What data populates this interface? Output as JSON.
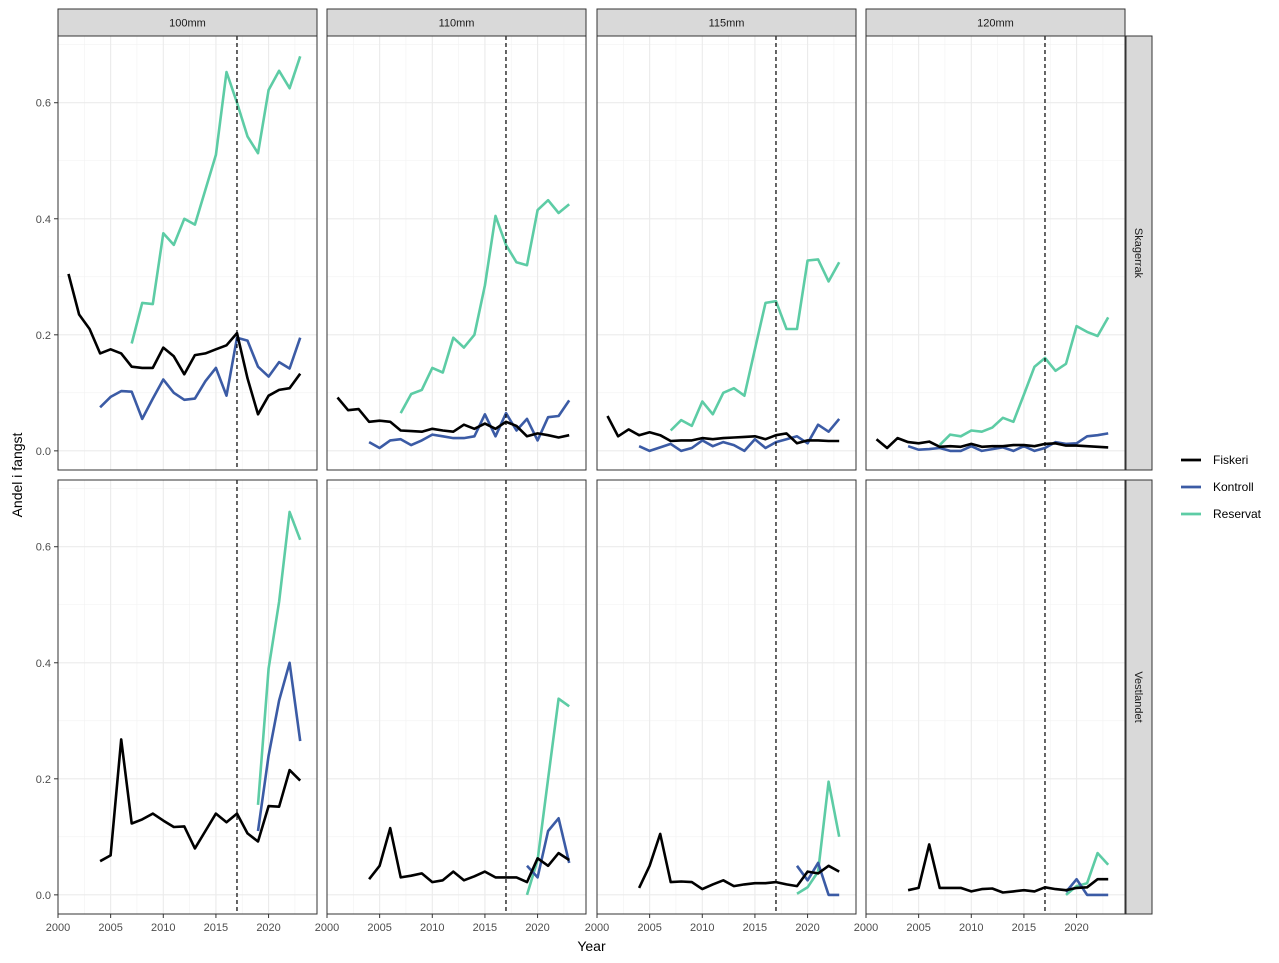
{
  "chart_data": {
    "type": "line",
    "title": "",
    "xlabel": "Year",
    "ylabel": "Andel i fangst",
    "xlim": [
      2000,
      2024.6
    ],
    "ylim": [
      -0.033,
      0.715
    ],
    "x_ticks": [
      2000,
      2005,
      2010,
      2015,
      2020
    ],
    "y_ticks": [
      0.0,
      0.2,
      0.4,
      0.6
    ],
    "y_tick_labels": [
      "0.0",
      "0.2",
      "0.4",
      "0.6"
    ],
    "vline_x": 2017,
    "grid": true,
    "legend_position": "right",
    "columns": [
      "100mm",
      "110mm",
      "115mm",
      "120mm"
    ],
    "rows": [
      "Skagerrak",
      "Vestlandet"
    ],
    "legend": [
      {
        "key": "Fiskeri",
        "label": "Fiskeri",
        "color": "#000000"
      },
      {
        "key": "Kontroll",
        "label": "Kontroll",
        "color": "#3b5ba5"
      },
      {
        "key": "Reservat",
        "label": "Reservat",
        "color": "#5dcca5"
      }
    ],
    "panels": [
      {
        "row": "Skagerrak",
        "col": "100mm",
        "series": [
          {
            "name": "Fiskeri",
            "x": [
              2001,
              2002,
              2003,
              2004,
              2005,
              2006,
              2007,
              2008,
              2009,
              2010,
              2011,
              2012,
              2013,
              2014,
              2015,
              2016,
              2017,
              2018,
              2019,
              2020,
              2021,
              2022,
              2023
            ],
            "y": [
              0.305,
              0.235,
              0.21,
              0.168,
              0.175,
              0.168,
              0.145,
              0.143,
              0.143,
              0.178,
              0.163,
              0.132,
              0.165,
              0.168,
              0.175,
              0.182,
              0.203,
              0.125,
              0.063,
              0.095,
              0.105,
              0.108,
              0.133
            ]
          },
          {
            "name": "Kontroll",
            "x": [
              2004,
              2005,
              2006,
              2007,
              2008,
              2009,
              2010,
              2011,
              2012,
              2013,
              2014,
              2015,
              2016,
              2017,
              2018,
              2019,
              2020,
              2021,
              2022,
              2023
            ],
            "y": [
              0.075,
              0.093,
              0.103,
              0.102,
              0.055,
              0.09,
              0.123,
              0.1,
              0.088,
              0.09,
              0.12,
              0.143,
              0.095,
              0.195,
              0.19,
              0.145,
              0.128,
              0.153,
              0.142,
              0.195
            ]
          },
          {
            "name": "Reservat",
            "x": [
              2007,
              2008,
              2009,
              2010,
              2011,
              2012,
              2013,
              2014,
              2015,
              2016,
              2017,
              2018,
              2019,
              2020,
              2021,
              2022,
              2023
            ],
            "y": [
              0.185,
              0.255,
              0.253,
              0.375,
              0.355,
              0.4,
              0.39,
              0.45,
              0.51,
              0.653,
              0.6,
              0.542,
              0.513,
              0.622,
              0.655,
              0.625,
              0.68
            ]
          }
        ]
      },
      {
        "row": "Skagerrak",
        "col": "110mm",
        "series": [
          {
            "name": "Fiskeri",
            "x": [
              2001,
              2002,
              2003,
              2004,
              2005,
              2006,
              2007,
              2008,
              2009,
              2010,
              2011,
              2012,
              2013,
              2014,
              2015,
              2016,
              2017,
              2018,
              2019,
              2020,
              2021,
              2022,
              2023
            ],
            "y": [
              0.092,
              0.07,
              0.072,
              0.05,
              0.052,
              0.05,
              0.035,
              0.034,
              0.033,
              0.038,
              0.035,
              0.033,
              0.045,
              0.038,
              0.047,
              0.038,
              0.05,
              0.043,
              0.025,
              0.03,
              0.027,
              0.023,
              0.027
            ]
          },
          {
            "name": "Kontroll",
            "x": [
              2004,
              2005,
              2006,
              2007,
              2008,
              2009,
              2010,
              2011,
              2012,
              2013,
              2014,
              2015,
              2016,
              2017,
              2018,
              2019,
              2020,
              2021,
              2022,
              2023
            ],
            "y": [
              0.015,
              0.005,
              0.018,
              0.02,
              0.01,
              0.018,
              0.028,
              0.025,
              0.022,
              0.022,
              0.025,
              0.063,
              0.025,
              0.065,
              0.035,
              0.055,
              0.018,
              0.058,
              0.06,
              0.087
            ]
          },
          {
            "name": "Reservat",
            "x": [
              2007,
              2008,
              2009,
              2010,
              2011,
              2012,
              2013,
              2014,
              2015,
              2016,
              2017,
              2018,
              2019,
              2020,
              2021,
              2022,
              2023
            ],
            "y": [
              0.065,
              0.098,
              0.105,
              0.143,
              0.135,
              0.195,
              0.178,
              0.2,
              0.285,
              0.405,
              0.355,
              0.325,
              0.32,
              0.415,
              0.432,
              0.41,
              0.425
            ]
          }
        ]
      },
      {
        "row": "Skagerrak",
        "col": "115mm",
        "series": [
          {
            "name": "Fiskeri",
            "x": [
              2001,
              2002,
              2003,
              2004,
              2005,
              2006,
              2007,
              2008,
              2009,
              2010,
              2011,
              2012,
              2013,
              2014,
              2015,
              2016,
              2017,
              2018,
              2019,
              2020,
              2021,
              2022,
              2023
            ],
            "y": [
              0.06,
              0.025,
              0.037,
              0.027,
              0.032,
              0.027,
              0.017,
              0.018,
              0.018,
              0.022,
              0.02,
              0.022,
              0.023,
              0.024,
              0.025,
              0.02,
              0.027,
              0.03,
              0.013,
              0.018,
              0.018,
              0.017,
              0.017
            ]
          },
          {
            "name": "Kontroll",
            "x": [
              2004,
              2005,
              2006,
              2007,
              2008,
              2009,
              2010,
              2011,
              2012,
              2013,
              2014,
              2015,
              2016,
              2017,
              2018,
              2019,
              2020,
              2021,
              2022,
              2023
            ],
            "y": [
              0.008,
              0.0,
              0.006,
              0.012,
              0.0,
              0.005,
              0.018,
              0.008,
              0.015,
              0.01,
              0.0,
              0.02,
              0.005,
              0.015,
              0.02,
              0.025,
              0.013,
              0.045,
              0.033,
              0.055
            ]
          },
          {
            "name": "Reservat",
            "x": [
              2007,
              2008,
              2009,
              2010,
              2011,
              2012,
              2013,
              2014,
              2015,
              2016,
              2017,
              2018,
              2019,
              2020,
              2021,
              2022,
              2023
            ],
            "y": [
              0.035,
              0.053,
              0.043,
              0.085,
              0.063,
              0.1,
              0.108,
              0.095,
              0.175,
              0.255,
              0.258,
              0.21,
              0.21,
              0.328,
              0.33,
              0.292,
              0.325
            ]
          }
        ]
      },
      {
        "row": "Skagerrak",
        "col": "120mm",
        "series": [
          {
            "name": "Fiskeri",
            "x": [
              2001,
              2002,
              2003,
              2004,
              2005,
              2006,
              2007,
              2008,
              2009,
              2010,
              2011,
              2012,
              2013,
              2014,
              2015,
              2016,
              2017,
              2018,
              2019,
              2020,
              2021,
              2022,
              2023
            ],
            "y": [
              0.02,
              0.005,
              0.022,
              0.015,
              0.013,
              0.016,
              0.007,
              0.008,
              0.007,
              0.012,
              0.007,
              0.008,
              0.008,
              0.01,
              0.01,
              0.008,
              0.012,
              0.013,
              0.009,
              0.009,
              0.008,
              0.007,
              0.006
            ]
          },
          {
            "name": "Kontroll",
            "x": [
              2004,
              2005,
              2006,
              2007,
              2008,
              2009,
              2010,
              2011,
              2012,
              2013,
              2014,
              2015,
              2016,
              2017,
              2018,
              2019,
              2020,
              2021,
              2022,
              2023
            ],
            "y": [
              0.008,
              0.002,
              0.003,
              0.005,
              0.0,
              0.0,
              0.008,
              0.0,
              0.003,
              0.006,
              0.0,
              0.008,
              0.0,
              0.005,
              0.015,
              0.012,
              0.013,
              0.025,
              0.027,
              0.03
            ]
          },
          {
            "name": "Reservat",
            "x": [
              2007,
              2008,
              2009,
              2010,
              2011,
              2012,
              2013,
              2014,
              2015,
              2016,
              2017,
              2018,
              2019,
              2020,
              2021,
              2022,
              2023
            ],
            "y": [
              0.01,
              0.028,
              0.025,
              0.035,
              0.033,
              0.04,
              0.057,
              0.05,
              0.097,
              0.145,
              0.16,
              0.138,
              0.15,
              0.215,
              0.205,
              0.198,
              0.23
            ]
          }
        ]
      },
      {
        "row": "Vestlandet",
        "col": "100mm",
        "series": [
          {
            "name": "Fiskeri",
            "x": [
              2004,
              2005,
              2006,
              2007,
              2008,
              2009,
              2010,
              2011,
              2012,
              2013,
              2014,
              2015,
              2016,
              2017,
              2018,
              2019,
              2020,
              2021,
              2022,
              2023
            ],
            "y": [
              0.058,
              0.068,
              0.268,
              0.123,
              0.13,
              0.14,
              0.128,
              0.117,
              0.118,
              0.08,
              0.11,
              0.14,
              0.125,
              0.14,
              0.106,
              0.092,
              0.153,
              0.152,
              0.215,
              0.197
            ]
          },
          {
            "name": "Kontroll",
            "x": [
              2019,
              2020,
              2021,
              2022,
              2023
            ],
            "y": [
              0.11,
              0.24,
              0.335,
              0.4,
              0.265
            ]
          },
          {
            "name": "Reservat",
            "x": [
              2019,
              2020,
              2021,
              2022,
              2023
            ],
            "y": [
              0.155,
              0.39,
              0.505,
              0.66,
              0.612
            ]
          }
        ]
      },
      {
        "row": "Vestlandet",
        "col": "110mm",
        "series": [
          {
            "name": "Fiskeri",
            "x": [
              2004,
              2005,
              2006,
              2007,
              2008,
              2009,
              2010,
              2011,
              2012,
              2013,
              2014,
              2015,
              2016,
              2017,
              2018,
              2019,
              2020,
              2021,
              2022,
              2023
            ],
            "y": [
              0.027,
              0.05,
              0.115,
              0.03,
              0.033,
              0.037,
              0.022,
              0.025,
              0.04,
              0.025,
              0.032,
              0.04,
              0.03,
              0.03,
              0.03,
              0.022,
              0.063,
              0.05,
              0.072,
              0.06
            ]
          },
          {
            "name": "Kontroll",
            "x": [
              2019,
              2020,
              2021,
              2022,
              2023
            ],
            "y": [
              0.05,
              0.03,
              0.11,
              0.132,
              0.055
            ]
          },
          {
            "name": "Reservat",
            "x": [
              2019,
              2020,
              2021,
              2022,
              2023
            ],
            "y": [
              0.0,
              0.06,
              0.2,
              0.338,
              0.325
            ]
          }
        ]
      },
      {
        "row": "Vestlandet",
        "col": "115mm",
        "series": [
          {
            "name": "Fiskeri",
            "x": [
              2004,
              2005,
              2006,
              2007,
              2008,
              2009,
              2010,
              2011,
              2012,
              2013,
              2014,
              2015,
              2016,
              2017,
              2018,
              2019,
              2020,
              2021,
              2022,
              2023
            ],
            "y": [
              0.012,
              0.05,
              0.105,
              0.022,
              0.023,
              0.022,
              0.01,
              0.018,
              0.025,
              0.015,
              0.018,
              0.02,
              0.02,
              0.022,
              0.018,
              0.015,
              0.04,
              0.037,
              0.05,
              0.04
            ]
          },
          {
            "name": "Kontroll",
            "x": [
              2019,
              2020,
              2021,
              2022,
              2023
            ],
            "y": [
              0.05,
              0.025,
              0.055,
              0.0,
              0.0
            ]
          },
          {
            "name": "Reservat",
            "x": [
              2019,
              2020,
              2021,
              2022,
              2023
            ],
            "y": [
              0.002,
              0.013,
              0.04,
              0.195,
              0.1
            ]
          }
        ]
      },
      {
        "row": "Vestlandet",
        "col": "120mm",
        "series": [
          {
            "name": "Fiskeri",
            "x": [
              2004,
              2005,
              2006,
              2007,
              2008,
              2009,
              2010,
              2011,
              2012,
              2013,
              2014,
              2015,
              2016,
              2017,
              2018,
              2019,
              2020,
              2021,
              2022,
              2023
            ],
            "y": [
              0.008,
              0.012,
              0.087,
              0.012,
              0.012,
              0.012,
              0.006,
              0.01,
              0.011,
              0.004,
              0.006,
              0.008,
              0.006,
              0.013,
              0.01,
              0.008,
              0.012,
              0.013,
              0.027,
              0.027
            ]
          },
          {
            "name": "Kontroll",
            "x": [
              2019,
              2020,
              2021,
              2022,
              2023
            ],
            "y": [
              0.005,
              0.027,
              0.0,
              0.0,
              0.0
            ]
          },
          {
            "name": "Reservat",
            "x": [
              2019,
              2020,
              2021,
              2022,
              2023
            ],
            "y": [
              0.0,
              0.015,
              0.02,
              0.072,
              0.052
            ]
          }
        ]
      }
    ]
  }
}
